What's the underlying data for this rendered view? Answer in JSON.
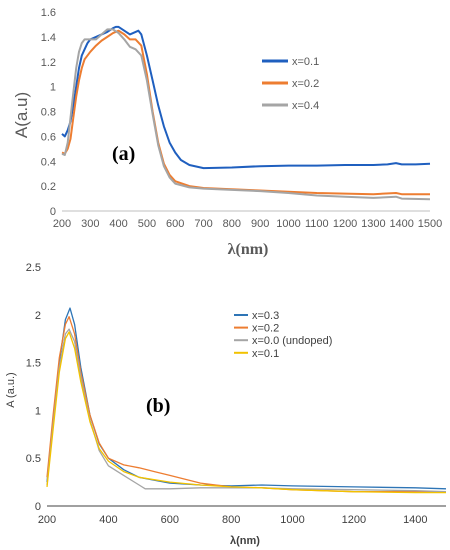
{
  "chart_data": [
    {
      "type": "line",
      "panel_label": "(a)",
      "xlabel": "λ(nm)",
      "ylabel": "A(a.u)",
      "xlim": [
        200,
        1500
      ],
      "ylim": [
        0,
        1.6
      ],
      "x_ticks": [
        200,
        300,
        400,
        500,
        600,
        700,
        800,
        900,
        1000,
        1100,
        1200,
        1300,
        1400,
        1500
      ],
      "y_ticks": [
        0,
        0.2,
        0.4,
        0.6,
        0.8,
        1,
        1.2,
        1.4,
        1.6
      ],
      "grid": false,
      "legend_position": "right",
      "series": [
        {
          "name": "x=0.1",
          "color": "#1f5fbf",
          "points": [
            [
              200,
              0.62
            ],
            [
              210,
              0.6
            ],
            [
              220,
              0.65
            ],
            [
              230,
              0.72
            ],
            [
              240,
              0.85
            ],
            [
              250,
              1.0
            ],
            [
              260,
              1.15
            ],
            [
              270,
              1.25
            ],
            [
              280,
              1.3
            ],
            [
              290,
              1.35
            ],
            [
              300,
              1.38
            ],
            [
              320,
              1.4
            ],
            [
              340,
              1.42
            ],
            [
              360,
              1.44
            ],
            [
              380,
              1.47
            ],
            [
              390,
              1.48
            ],
            [
              400,
              1.48
            ],
            [
              420,
              1.45
            ],
            [
              440,
              1.42
            ],
            [
              460,
              1.44
            ],
            [
              470,
              1.45
            ],
            [
              480,
              1.42
            ],
            [
              500,
              1.25
            ],
            [
              520,
              1.05
            ],
            [
              540,
              0.85
            ],
            [
              560,
              0.68
            ],
            [
              580,
              0.55
            ],
            [
              600,
              0.47
            ],
            [
              620,
              0.41
            ],
            [
              650,
              0.37
            ],
            [
              700,
              0.345
            ],
            [
              800,
              0.35
            ],
            [
              900,
              0.36
            ],
            [
              1000,
              0.365
            ],
            [
              1100,
              0.365
            ],
            [
              1200,
              0.37
            ],
            [
              1300,
              0.37
            ],
            [
              1350,
              0.375
            ],
            [
              1380,
              0.385
            ],
            [
              1400,
              0.375
            ],
            [
              1450,
              0.375
            ],
            [
              1500,
              0.38
            ]
          ]
        },
        {
          "name": "x=0.2",
          "color": "#ed7d31",
          "points": [
            [
              200,
              0.47
            ],
            [
              210,
              0.46
            ],
            [
              220,
              0.5
            ],
            [
              230,
              0.58
            ],
            [
              240,
              0.75
            ],
            [
              250,
              0.92
            ],
            [
              260,
              1.05
            ],
            [
              270,
              1.15
            ],
            [
              280,
              1.22
            ],
            [
              300,
              1.28
            ],
            [
              320,
              1.33
            ],
            [
              340,
              1.37
            ],
            [
              360,
              1.4
            ],
            [
              380,
              1.43
            ],
            [
              400,
              1.45
            ],
            [
              420,
              1.42
            ],
            [
              440,
              1.38
            ],
            [
              460,
              1.38
            ],
            [
              480,
              1.33
            ],
            [
              500,
              1.1
            ],
            [
              520,
              0.8
            ],
            [
              540,
              0.55
            ],
            [
              560,
              0.38
            ],
            [
              580,
              0.29
            ],
            [
              600,
              0.24
            ],
            [
              650,
              0.2
            ],
            [
              700,
              0.185
            ],
            [
              800,
              0.175
            ],
            [
              900,
              0.165
            ],
            [
              1000,
              0.155
            ],
            [
              1100,
              0.145
            ],
            [
              1200,
              0.14
            ],
            [
              1300,
              0.135
            ],
            [
              1380,
              0.145
            ],
            [
              1400,
              0.135
            ],
            [
              1500,
              0.135
            ]
          ]
        },
        {
          "name": "x=0.4",
          "color": "#a5a5a5",
          "points": [
            [
              200,
              0.46
            ],
            [
              210,
              0.45
            ],
            [
              220,
              0.55
            ],
            [
              230,
              0.75
            ],
            [
              240,
              0.95
            ],
            [
              250,
              1.15
            ],
            [
              260,
              1.28
            ],
            [
              270,
              1.35
            ],
            [
              280,
              1.38
            ],
            [
              300,
              1.38
            ],
            [
              320,
              1.38
            ],
            [
              340,
              1.42
            ],
            [
              360,
              1.46
            ],
            [
              380,
              1.46
            ],
            [
              400,
              1.43
            ],
            [
              420,
              1.38
            ],
            [
              440,
              1.32
            ],
            [
              460,
              1.3
            ],
            [
              480,
              1.25
            ],
            [
              500,
              1.05
            ],
            [
              520,
              0.78
            ],
            [
              540,
              0.53
            ],
            [
              560,
              0.36
            ],
            [
              580,
              0.27
            ],
            [
              600,
              0.22
            ],
            [
              650,
              0.19
            ],
            [
              700,
              0.18
            ],
            [
              800,
              0.17
            ],
            [
              900,
              0.16
            ],
            [
              1000,
              0.145
            ],
            [
              1100,
              0.125
            ],
            [
              1200,
              0.115
            ],
            [
              1300,
              0.105
            ],
            [
              1380,
              0.115
            ],
            [
              1400,
              0.1
            ],
            [
              1500,
              0.095
            ]
          ]
        }
      ]
    },
    {
      "type": "line",
      "panel_label": "(b)",
      "xlabel": "λ(nm)",
      "ylabel": "A (a.u.)",
      "xlim": [
        200,
        1500
      ],
      "ylim": [
        0,
        2.5
      ],
      "x_ticks": [
        200,
        400,
        600,
        800,
        1000,
        1200,
        1400
      ],
      "y_ticks": [
        0,
        0.5,
        1,
        1.5,
        2,
        2.5
      ],
      "grid": false,
      "legend_position": "right",
      "series": [
        {
          "name": "x=0.3",
          "color": "#2e75b6",
          "points": [
            [
              200,
              0.25
            ],
            [
              220,
              0.9
            ],
            [
              240,
              1.5
            ],
            [
              260,
              1.95
            ],
            [
              275,
              2.07
            ],
            [
              290,
              1.9
            ],
            [
              310,
              1.45
            ],
            [
              340,
              0.95
            ],
            [
              370,
              0.65
            ],
            [
              400,
              0.5
            ],
            [
              450,
              0.38
            ],
            [
              500,
              0.3
            ],
            [
              600,
              0.24
            ],
            [
              700,
              0.22
            ],
            [
              800,
              0.21
            ],
            [
              900,
              0.22
            ],
            [
              1000,
              0.21
            ],
            [
              1200,
              0.2
            ],
            [
              1400,
              0.19
            ],
            [
              1500,
              0.18
            ]
          ]
        },
        {
          "name": "x=0.2",
          "color": "#ed7d31",
          "points": [
            [
              200,
              0.3
            ],
            [
              220,
              0.95
            ],
            [
              240,
              1.55
            ],
            [
              260,
              1.9
            ],
            [
              272,
              1.98
            ],
            [
              290,
              1.8
            ],
            [
              310,
              1.4
            ],
            [
              340,
              0.95
            ],
            [
              370,
              0.66
            ],
            [
              400,
              0.5
            ],
            [
              450,
              0.43
            ],
            [
              500,
              0.4
            ],
            [
              550,
              0.36
            ],
            [
              600,
              0.32
            ],
            [
              700,
              0.24
            ],
            [
              800,
              0.2
            ],
            [
              900,
              0.19
            ],
            [
              1000,
              0.17
            ],
            [
              1200,
              0.15
            ],
            [
              1400,
              0.15
            ],
            [
              1500,
              0.15
            ]
          ]
        },
        {
          "name": "x=0.0 (undoped)",
          "color": "#a5a5a5",
          "points": [
            [
              200,
              0.22
            ],
            [
              220,
              0.85
            ],
            [
              240,
              1.45
            ],
            [
              260,
              1.8
            ],
            [
              272,
              1.85
            ],
            [
              290,
              1.72
            ],
            [
              310,
              1.35
            ],
            [
              340,
              0.9
            ],
            [
              370,
              0.58
            ],
            [
              400,
              0.42
            ],
            [
              450,
              0.32
            ],
            [
              500,
              0.22
            ],
            [
              520,
              0.18
            ],
            [
              550,
              0.18
            ],
            [
              600,
              0.18
            ],
            [
              700,
              0.19
            ],
            [
              800,
              0.19
            ],
            [
              900,
              0.19
            ],
            [
              1000,
              0.18
            ],
            [
              1200,
              0.17
            ],
            [
              1400,
              0.16
            ],
            [
              1500,
              0.15
            ]
          ]
        },
        {
          "name": "x=0.1",
          "color": "#f2c200",
          "points": [
            [
              200,
              0.2
            ],
            [
              220,
              0.8
            ],
            [
              240,
              1.4
            ],
            [
              260,
              1.75
            ],
            [
              272,
              1.82
            ],
            [
              290,
              1.65
            ],
            [
              310,
              1.3
            ],
            [
              340,
              0.88
            ],
            [
              370,
              0.6
            ],
            [
              400,
              0.47
            ],
            [
              450,
              0.36
            ],
            [
              500,
              0.3
            ],
            [
              600,
              0.25
            ],
            [
              700,
              0.22
            ],
            [
              800,
              0.2
            ],
            [
              900,
              0.19
            ],
            [
              1000,
              0.17
            ],
            [
              1200,
              0.15
            ],
            [
              1400,
              0.14
            ],
            [
              1500,
              0.14
            ]
          ]
        }
      ]
    }
  ]
}
